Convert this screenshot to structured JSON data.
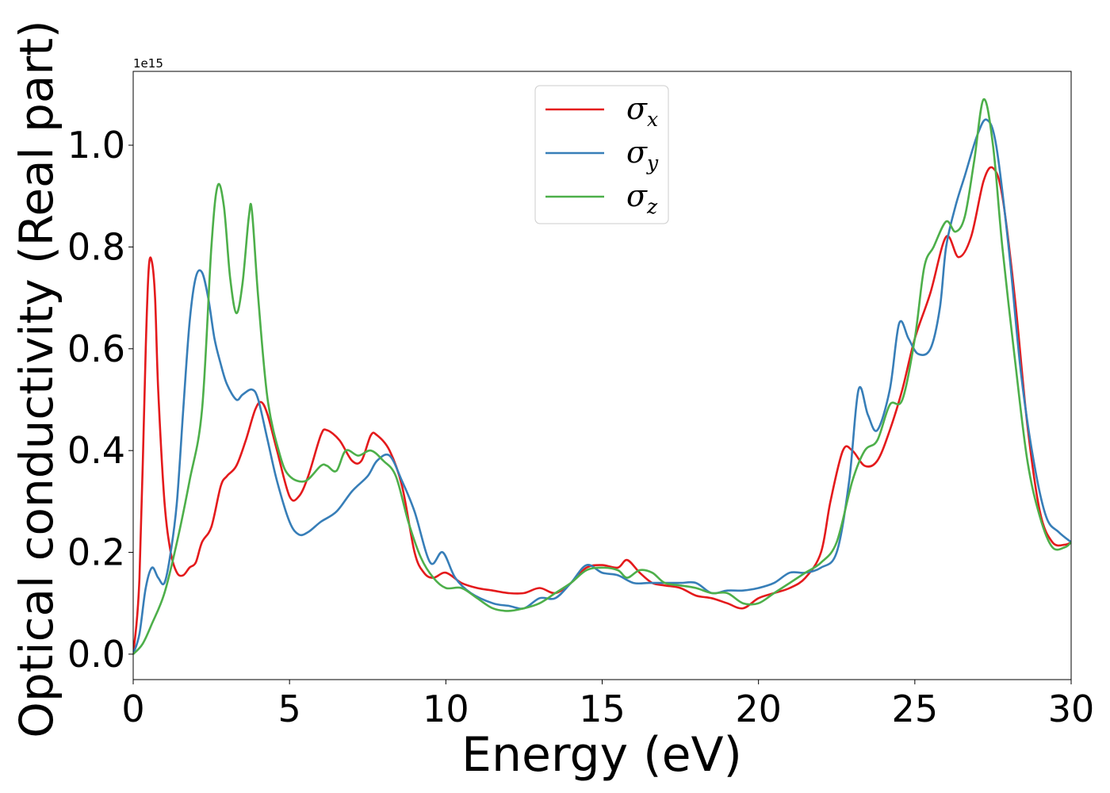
{
  "chart_data": {
    "type": "line",
    "xlabel": "Energy (eV)",
    "ylabel": "Optical conductivity (Real part)",
    "y_offset_text": "1e15",
    "y_scale": 1000000000000000.0,
    "xlim": [
      0,
      30
    ],
    "ylim": [
      -0.05,
      1.145
    ],
    "xticks": [
      0,
      5,
      10,
      15,
      20,
      25,
      30
    ],
    "xtick_labels": [
      "0",
      "5",
      "10",
      "15",
      "20",
      "25",
      "30"
    ],
    "yticks": [
      0.0,
      0.2,
      0.4,
      0.6,
      0.8,
      1.0
    ],
    "ytick_labels": [
      "0.0",
      "0.2",
      "0.4",
      "0.6",
      "0.8",
      "1.0"
    ],
    "grid": false,
    "legend_position": "upper center",
    "series": [
      {
        "name": "σ_x",
        "label_base": "σ",
        "label_sub": "x",
        "color": "#e41a1c",
        "x": [
          0,
          0.2,
          0.4,
          0.5,
          0.6,
          0.7,
          0.8,
          1.0,
          1.2,
          1.4,
          1.6,
          1.8,
          2.0,
          2.2,
          2.5,
          2.8,
          3.0,
          3.3,
          3.6,
          3.9,
          4.1,
          4.3,
          4.6,
          5.0,
          5.3,
          5.6,
          6.0,
          6.2,
          6.6,
          7.0,
          7.3,
          7.6,
          7.8,
          8.2,
          8.6,
          9.0,
          9.3,
          9.6,
          10.0,
          10.5,
          11.0,
          11.5,
          12.0,
          12.5,
          13.0,
          13.5,
          14.0,
          14.5,
          15.0,
          15.5,
          15.8,
          16.2,
          16.6,
          17.0,
          17.5,
          18.0,
          18.5,
          19.0,
          19.5,
          20.0,
          20.5,
          21.0,
          21.5,
          22.0,
          22.3,
          22.7,
          23.0,
          23.4,
          23.8,
          24.2,
          24.6,
          25.0,
          25.5,
          26.0,
          26.4,
          26.8,
          27.2,
          27.5,
          27.8,
          28.2,
          28.6,
          29.0,
          29.4,
          29.8,
          30.0
        ],
        "y": [
          0.0,
          0.15,
          0.6,
          0.76,
          0.77,
          0.7,
          0.52,
          0.3,
          0.2,
          0.16,
          0.155,
          0.17,
          0.18,
          0.22,
          0.25,
          0.33,
          0.35,
          0.37,
          0.42,
          0.48,
          0.495,
          0.47,
          0.4,
          0.31,
          0.31,
          0.35,
          0.43,
          0.44,
          0.42,
          0.38,
          0.38,
          0.43,
          0.43,
          0.4,
          0.33,
          0.2,
          0.16,
          0.15,
          0.16,
          0.14,
          0.13,
          0.125,
          0.12,
          0.12,
          0.13,
          0.12,
          0.14,
          0.17,
          0.175,
          0.17,
          0.185,
          0.16,
          0.14,
          0.135,
          0.13,
          0.115,
          0.11,
          0.1,
          0.09,
          0.11,
          0.12,
          0.13,
          0.15,
          0.2,
          0.3,
          0.4,
          0.4,
          0.37,
          0.38,
          0.44,
          0.52,
          0.62,
          0.71,
          0.82,
          0.78,
          0.82,
          0.93,
          0.955,
          0.9,
          0.7,
          0.45,
          0.28,
          0.22,
          0.215,
          0.22
        ]
      },
      {
        "name": "σ_y",
        "label_base": "σ",
        "label_sub": "y",
        "color": "#377eb8",
        "x": [
          0,
          0.2,
          0.4,
          0.6,
          0.8,
          1.0,
          1.2,
          1.4,
          1.6,
          1.8,
          2.0,
          2.2,
          2.4,
          2.6,
          2.8,
          3.0,
          3.3,
          3.5,
          3.8,
          4.0,
          4.3,
          4.6,
          5.0,
          5.3,
          5.6,
          6.0,
          6.5,
          7.0,
          7.5,
          7.8,
          8.2,
          8.6,
          9.0,
          9.5,
          9.9,
          10.3,
          10.8,
          11.5,
          12.0,
          12.5,
          13.0,
          13.5,
          14.0,
          14.5,
          15.0,
          15.5,
          16.0,
          16.5,
          17.0,
          17.5,
          18.0,
          18.5,
          19.0,
          19.5,
          20.0,
          20.5,
          21.0,
          21.5,
          22.0,
          22.5,
          22.9,
          23.2,
          23.5,
          23.8,
          24.2,
          24.5,
          24.8,
          25.1,
          25.5,
          25.8,
          26.0,
          26.3,
          26.6,
          27.0,
          27.3,
          27.6,
          28.0,
          28.4,
          28.8,
          29.2,
          29.6,
          30.0
        ],
        "y": [
          0.0,
          0.04,
          0.13,
          0.17,
          0.15,
          0.14,
          0.2,
          0.3,
          0.48,
          0.65,
          0.74,
          0.75,
          0.7,
          0.62,
          0.57,
          0.53,
          0.5,
          0.51,
          0.52,
          0.5,
          0.42,
          0.34,
          0.26,
          0.235,
          0.24,
          0.26,
          0.28,
          0.32,
          0.35,
          0.38,
          0.39,
          0.34,
          0.28,
          0.18,
          0.2,
          0.15,
          0.12,
          0.1,
          0.095,
          0.09,
          0.11,
          0.11,
          0.14,
          0.175,
          0.16,
          0.155,
          0.14,
          0.14,
          0.14,
          0.14,
          0.14,
          0.12,
          0.125,
          0.125,
          0.13,
          0.14,
          0.16,
          0.16,
          0.17,
          0.2,
          0.34,
          0.52,
          0.47,
          0.44,
          0.52,
          0.65,
          0.62,
          0.59,
          0.6,
          0.68,
          0.8,
          0.88,
          0.94,
          1.02,
          1.05,
          1.0,
          0.8,
          0.55,
          0.38,
          0.27,
          0.24,
          0.22
        ]
      },
      {
        "name": "σ_z",
        "label_base": "σ",
        "label_sub": "z",
        "color": "#4daf4a",
        "x": [
          0,
          0.3,
          0.6,
          1.0,
          1.4,
          1.8,
          2.2,
          2.5,
          2.7,
          2.9,
          3.1,
          3.3,
          3.5,
          3.7,
          3.8,
          4.0,
          4.3,
          4.7,
          5.0,
          5.5,
          6.0,
          6.2,
          6.5,
          6.8,
          7.2,
          7.6,
          8.0,
          8.4,
          8.8,
          9.2,
          9.6,
          10.0,
          10.5,
          11.0,
          11.5,
          12.0,
          12.5,
          13.0,
          13.5,
          14.0,
          14.5,
          15.0,
          15.5,
          15.8,
          16.2,
          16.6,
          17.0,
          17.5,
          18.0,
          18.5,
          19.0,
          19.5,
          20.0,
          20.5,
          21.0,
          21.5,
          22.0,
          22.5,
          23.0,
          23.4,
          23.8,
          24.2,
          24.6,
          25.0,
          25.3,
          25.6,
          26.0,
          26.3,
          26.6,
          26.9,
          27.2,
          27.5,
          27.8,
          28.2,
          28.6,
          29.0,
          29.4,
          29.8,
          30.0
        ],
        "y": [
          0.0,
          0.02,
          0.06,
          0.12,
          0.22,
          0.34,
          0.48,
          0.8,
          0.92,
          0.88,
          0.74,
          0.67,
          0.73,
          0.86,
          0.87,
          0.7,
          0.5,
          0.39,
          0.35,
          0.34,
          0.37,
          0.37,
          0.36,
          0.4,
          0.39,
          0.4,
          0.38,
          0.35,
          0.26,
          0.19,
          0.15,
          0.13,
          0.13,
          0.11,
          0.09,
          0.085,
          0.09,
          0.1,
          0.12,
          0.14,
          0.165,
          0.17,
          0.165,
          0.15,
          0.165,
          0.16,
          0.14,
          0.135,
          0.13,
          0.12,
          0.12,
          0.1,
          0.1,
          0.12,
          0.14,
          0.16,
          0.18,
          0.22,
          0.34,
          0.4,
          0.42,
          0.49,
          0.5,
          0.62,
          0.76,
          0.8,
          0.85,
          0.83,
          0.86,
          0.97,
          1.09,
          1.0,
          0.8,
          0.58,
          0.38,
          0.27,
          0.21,
          0.21,
          0.22
        ]
      }
    ]
  }
}
